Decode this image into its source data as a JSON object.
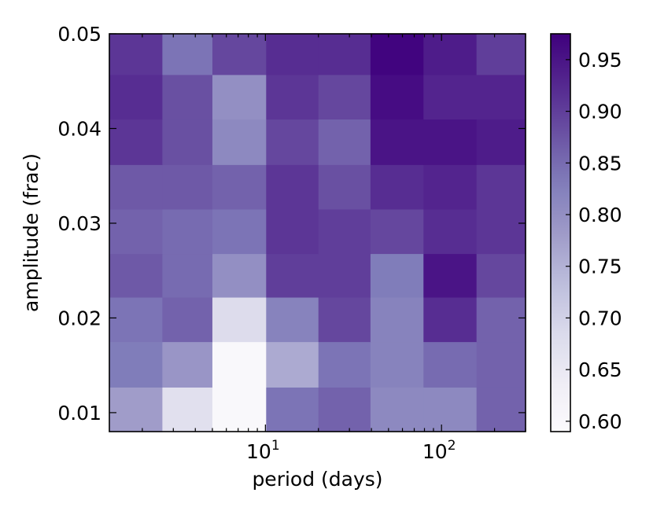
{
  "chart_data": {
    "type": "heatmap",
    "xlabel": "period (days)",
    "ylabel": "amplitude (frac)",
    "xscale": "log",
    "xlim": [
      1.3,
      300
    ],
    "x_edges": [
      1.3,
      2.6,
      5.0,
      10.1,
      20.0,
      39.5,
      79.0,
      158.0,
      300.0
    ],
    "ylim": [
      0.008,
      0.05
    ],
    "y_edges": [
      0.008,
      0.0127,
      0.0175,
      0.0222,
      0.0268,
      0.0315,
      0.0362,
      0.041,
      0.0457,
      0.05
    ],
    "x_ticks": [
      {
        "value": 10,
        "base": "10",
        "exp": "1"
      },
      {
        "value": 100,
        "base": "10",
        "exp": "2"
      }
    ],
    "y_ticks": [
      {
        "value": 0.01,
        "label": "0.01"
      },
      {
        "value": 0.02,
        "label": "0.02"
      },
      {
        "value": 0.03,
        "label": "0.03"
      },
      {
        "value": 0.04,
        "label": "0.04"
      },
      {
        "value": 0.05,
        "label": "0.05"
      }
    ],
    "values": [
      [
        0.78,
        0.67,
        0.6,
        0.84,
        0.86,
        0.81,
        0.81,
        0.86
      ],
      [
        0.83,
        0.79,
        0.6,
        0.76,
        0.84,
        0.82,
        0.85,
        0.86
      ],
      [
        0.84,
        0.86,
        0.68,
        0.82,
        0.89,
        0.82,
        0.92,
        0.86
      ],
      [
        0.87,
        0.85,
        0.8,
        0.9,
        0.9,
        0.83,
        0.95,
        0.89
      ],
      [
        0.86,
        0.85,
        0.84,
        0.91,
        0.9,
        0.89,
        0.92,
        0.91
      ],
      [
        0.87,
        0.87,
        0.86,
        0.91,
        0.88,
        0.92,
        0.93,
        0.91
      ],
      [
        0.91,
        0.88,
        0.81,
        0.89,
        0.86,
        0.95,
        0.95,
        0.94
      ],
      [
        0.92,
        0.88,
        0.8,
        0.91,
        0.89,
        0.96,
        0.93,
        0.93
      ],
      [
        0.91,
        0.84,
        0.89,
        0.92,
        0.92,
        0.97,
        0.94,
        0.9
      ]
    ],
    "colorbar": {
      "min": 0.59,
      "max": 0.975,
      "colormap": "Purples",
      "ticks": [
        {
          "value": 0.6,
          "label": "0.60"
        },
        {
          "value": 0.65,
          "label": "0.65"
        },
        {
          "value": 0.7,
          "label": "0.70"
        },
        {
          "value": 0.75,
          "label": "0.75"
        },
        {
          "value": 0.8,
          "label": "0.80"
        },
        {
          "value": 0.85,
          "label": "0.85"
        },
        {
          "value": 0.9,
          "label": "0.90"
        },
        {
          "value": 0.95,
          "label": "0.95"
        }
      ]
    },
    "grid": false,
    "legend": "none"
  }
}
